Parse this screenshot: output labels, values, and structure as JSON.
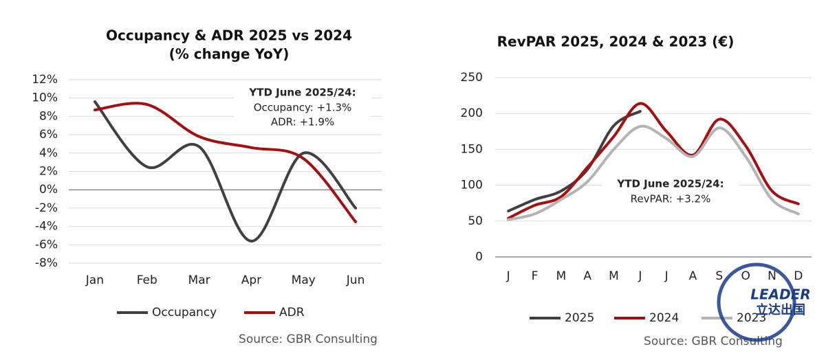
{
  "chart_data": [
    {
      "type": "line",
      "title": "Occupancy & ADR 2025 vs 2024",
      "subtitle": "(% change YoY)",
      "categories": [
        "Jan",
        "Feb",
        "Mar",
        "Apr",
        "May",
        "Jun"
      ],
      "series": [
        {
          "name": "Occupancy",
          "color": "#404040",
          "values": [
            9.6,
            2.5,
            4.7,
            -5.6,
            4.0,
            -2.0
          ]
        },
        {
          "name": "ADR",
          "color": "#a50f0f",
          "values": [
            8.7,
            9.3,
            5.8,
            4.6,
            3.4,
            -3.5
          ]
        }
      ],
      "ylim": [
        -8,
        12
      ],
      "yticks": [
        {
          "value": -8,
          "label": "-8%"
        },
        {
          "value": -6,
          "label": "-6%"
        },
        {
          "value": -4,
          "label": "-4%"
        },
        {
          "value": -2,
          "label": "-2%"
        },
        {
          "value": 0,
          "label": "0%"
        },
        {
          "value": 2,
          "label": "2%"
        },
        {
          "value": 4,
          "label": "4%"
        },
        {
          "value": 6,
          "label": "6%"
        },
        {
          "value": 8,
          "label": "8%"
        },
        {
          "value": 10,
          "label": "10%"
        },
        {
          "value": 12,
          "label": "12%"
        }
      ],
      "grid": true,
      "annotations": [
        "YTD June 2025/24:",
        "Occupancy: +1.3%",
        "ADR: +1.9%"
      ],
      "source": "Source: GBR Consulting"
    },
    {
      "type": "line",
      "title": "RevPAR 2025, 2024 & 2023 (€)",
      "categories": [
        "J",
        "F",
        "M",
        "A",
        "M",
        "J",
        "J",
        "A",
        "S",
        "O",
        "N",
        "D"
      ],
      "series": [
        {
          "name": "2025",
          "color": "#404040",
          "values": [
            64,
            80,
            92,
            122,
            183,
            203,
            null,
            null,
            null,
            null,
            null,
            null
          ]
        },
        {
          "name": "2024",
          "color": "#a50f0f",
          "values": [
            54,
            72,
            84,
            125,
            168,
            214,
            175,
            142,
            192,
            155,
            92,
            74
          ]
        },
        {
          "name": "2023",
          "color": "#b4b4b4",
          "values": [
            52,
            60,
            80,
            105,
            150,
            182,
            165,
            140,
            180,
            140,
            80,
            60
          ]
        }
      ],
      "ylim": [
        0,
        250
      ],
      "yticks": [
        0,
        50,
        100,
        150,
        200,
        250
      ],
      "grid": true,
      "annotations": [
        "YTD June 2025/24:",
        "RevPAR: +3.2%"
      ],
      "source": "Source: GBR Consulting"
    }
  ],
  "logo": {
    "name": "LEADER",
    "subtitle": "立达出国"
  }
}
